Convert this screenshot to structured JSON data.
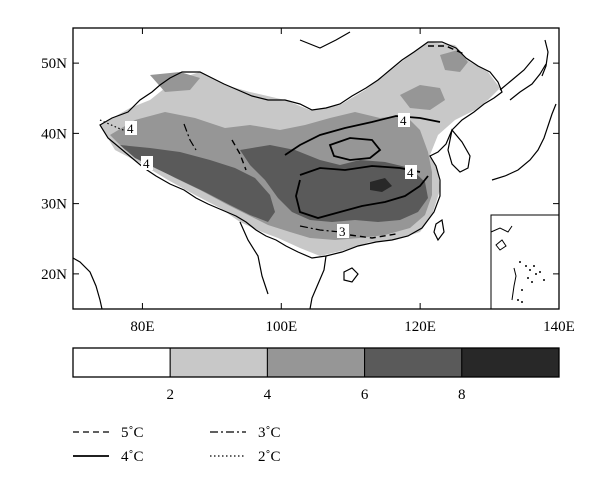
{
  "chart_data": {
    "type": "heatmap",
    "title": "",
    "map_region": "China",
    "lon_range": [
      70,
      140
    ],
    "lat_range": [
      15,
      55
    ],
    "x_ticks": [
      {
        "value": 80,
        "label": "80E"
      },
      {
        "value": 100,
        "label": "100E"
      },
      {
        "value": 120,
        "label": "120E"
      },
      {
        "value": 140,
        "label": "140E"
      }
    ],
    "y_ticks": [
      {
        "value": 20,
        "label": "20N"
      },
      {
        "value": 30,
        "label": "30N"
      },
      {
        "value": 40,
        "label": "40N"
      },
      {
        "value": 50,
        "label": "50N"
      }
    ],
    "colorbar": {
      "boundaries": [
        2,
        4,
        6,
        8
      ],
      "boundary_labels": [
        "2",
        "4",
        "6",
        "8"
      ],
      "colors": [
        "#ffffff",
        "#c8c8c8",
        "#969696",
        "#5a5a5a",
        "#282828"
      ],
      "bin_count": 5
    },
    "shading_regions": [
      {
        "level": "2-4",
        "area": "northeastern and northwestern China, Inner Mongolia"
      },
      {
        "level": "4-6",
        "area": "eastern China, northern plateau margin"
      },
      {
        "level": "6-8",
        "area": "Tibetan Plateau, Sichuan Basin, middle-lower Yangtze"
      }
    ],
    "contour_legend": [
      {
        "style": "dashed",
        "label": "5˚C"
      },
      {
        "style": "solid",
        "label": "4˚C"
      },
      {
        "style": "dashdot",
        "label": "3˚C"
      },
      {
        "style": "dotted",
        "label": "2˚C"
      }
    ],
    "contour_labels": [
      "4",
      "4",
      "4",
      "4",
      "3"
    ],
    "grid": false,
    "inset": "South China Sea islands"
  }
}
